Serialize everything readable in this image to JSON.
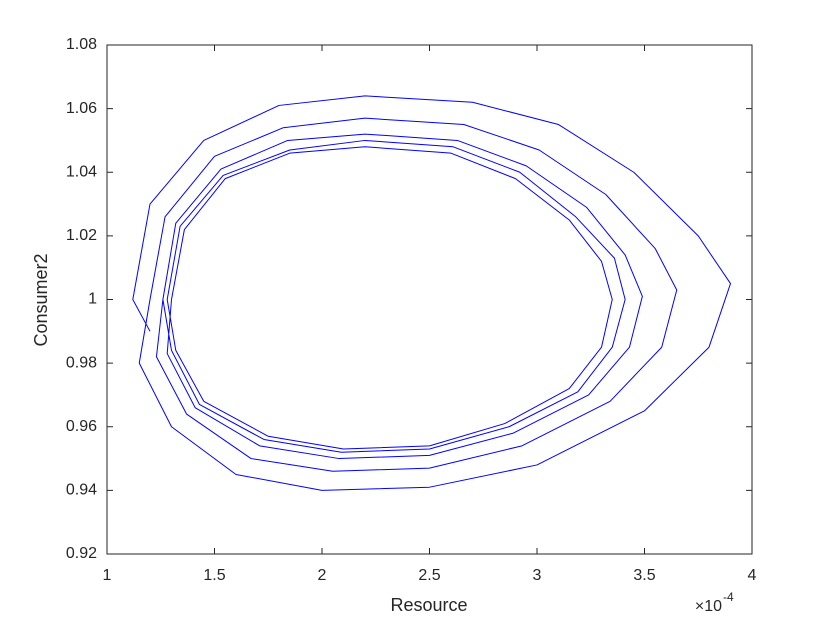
{
  "chart_data": {
    "type": "line",
    "xlabel": "Resource",
    "ylabel": "Consumer2",
    "x_multiplier": "×10",
    "x_multiplier_exponent": "-4",
    "color": "#0000ff",
    "xlim": [
      1,
      4
    ],
    "xticks": [
      1,
      1.5,
      2,
      2.5,
      3,
      3.5,
      4
    ],
    "ylim": [
      0.92,
      1.08
    ],
    "yticks": [
      0.92,
      0.94,
      0.96,
      0.98,
      1,
      1.02,
      1.04,
      1.06,
      1.08
    ],
    "x": [
      1.2,
      1.12,
      1.2,
      1.45,
      1.8,
      2.2,
      2.7,
      3.1,
      3.45,
      3.75,
      3.9,
      3.8,
      3.5,
      3.0,
      2.5,
      2.0,
      1.6,
      1.3,
      1.15,
      1.2,
      1.27,
      1.5,
      1.82,
      2.2,
      2.66,
      3.01,
      3.32,
      3.55,
      3.65,
      3.58,
      3.34,
      2.93,
      2.5,
      2.05,
      1.67,
      1.37,
      1.23,
      1.26,
      1.32,
      1.53,
      1.84,
      2.2,
      2.63,
      2.95,
      3.23,
      3.41,
      3.49,
      3.43,
      3.24,
      2.89,
      2.5,
      2.08,
      1.71,
      1.41,
      1.28,
      1.3,
      1.36,
      1.55,
      1.85,
      2.2,
      2.6,
      2.9,
      3.15,
      3.3,
      3.35,
      3.3,
      3.15,
      2.85,
      2.5,
      2.1,
      1.75,
      1.45,
      1.32,
      1.28,
      1.34,
      1.54,
      1.85,
      2.2,
      2.61,
      2.92,
      3.18,
      3.36,
      3.41,
      3.35,
      3.19,
      2.87,
      2.5,
      2.09,
      1.73,
      1.43,
      1.3,
      1.26,
      1.32,
      1.53,
      1.84,
      2.2,
      2.63,
      2.95,
      3.23,
      3.41,
      3.49,
      3.43,
      3.24,
      2.89,
      2.5,
      2.08,
      1.71,
      1.41,
      1.28,
      1.3,
      1.36,
      1.55,
      1.85,
      2.2,
      2.6,
      2.9,
      3.15,
      3.3,
      3.35,
      3.3,
      3.15,
      2.85,
      2.5,
      2.1,
      1.75,
      1.45,
      1.32
    ],
    "values": [
      0.99,
      1.0,
      1.03,
      1.05,
      1.061,
      1.064,
      1.062,
      1.055,
      1.04,
      1.02,
      1.005,
      0.985,
      0.965,
      0.948,
      0.941,
      0.94,
      0.945,
      0.96,
      0.98,
      1.0,
      1.026,
      1.045,
      1.054,
      1.057,
      1.055,
      1.047,
      1.033,
      1.016,
      1.003,
      0.985,
      0.968,
      0.954,
      0.947,
      0.946,
      0.95,
      0.964,
      0.982,
      1.0,
      1.024,
      1.041,
      1.05,
      1.052,
      1.05,
      1.042,
      1.029,
      1.014,
      1.001,
      0.985,
      0.97,
      0.958,
      0.951,
      0.95,
      0.954,
      0.966,
      0.983,
      1.0,
      1.022,
      1.038,
      1.046,
      1.048,
      1.046,
      1.038,
      1.025,
      1.012,
      1.0,
      0.985,
      0.972,
      0.961,
      0.954,
      0.953,
      0.957,
      0.968,
      0.984,
      1.0,
      1.023,
      1.039,
      1.047,
      1.05,
      1.048,
      1.04,
      1.026,
      1.013,
      1.0,
      0.985,
      0.971,
      0.96,
      0.953,
      0.952,
      0.956,
      0.967,
      0.984,
      1.0,
      1.024,
      1.041,
      1.05,
      1.052,
      1.05,
      1.042,
      1.029,
      1.014,
      1.001,
      0.985,
      0.97,
      0.958,
      0.951,
      0.95,
      0.954,
      0.966,
      0.983,
      1.0,
      1.022,
      1.038,
      1.046,
      1.048,
      1.046,
      1.038,
      1.025,
      1.012,
      1.0,
      0.985,
      0.972,
      0.961,
      0.954,
      0.953,
      0.957,
      0.968,
      0.984
    ]
  }
}
